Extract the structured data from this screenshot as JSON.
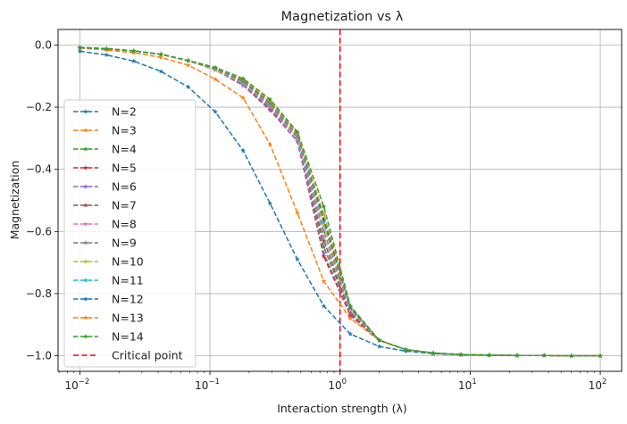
{
  "chart_data": {
    "type": "line",
    "title": "Magnetization vs λ",
    "xlabel": "Interaction strength (λ)",
    "ylabel": "Magnetization",
    "xscale": "log",
    "xlim": [
      0.0068,
      146
    ],
    "ylim": [
      -1.05,
      0.05
    ],
    "grid": true,
    "legend_position": "lower-left",
    "x_ticks": [
      {
        "base": "10",
        "exp": "−2",
        "value": 0.01
      },
      {
        "base": "10",
        "exp": "−1",
        "value": 0.1
      },
      {
        "base": "10",
        "exp": "0",
        "value": 1
      },
      {
        "base": "10",
        "exp": "1",
        "value": 10
      },
      {
        "base": "10",
        "exp": "2",
        "value": 100
      }
    ],
    "y_ticks": [
      {
        "label": "0.0",
        "value": 0.0
      },
      {
        "label": "−0.2",
        "value": -0.2
      },
      {
        "label": "−0.4",
        "value": -0.4
      },
      {
        "label": "−0.6",
        "value": -0.6
      },
      {
        "label": "−0.8",
        "value": -0.8
      },
      {
        "label": "−1.0",
        "value": -1.0
      }
    ],
    "x": [
      0.01,
      0.016,
      0.026,
      0.042,
      0.068,
      0.11,
      0.18,
      0.29,
      0.47,
      0.75,
      1.2,
      2.0,
      3.2,
      5.2,
      8.5,
      14,
      23,
      37,
      60,
      100
    ],
    "series": [
      {
        "name": "N=2",
        "color": "#1f77b4",
        "values": [
          -0.02,
          -0.032,
          -0.052,
          -0.085,
          -0.135,
          -0.215,
          -0.34,
          -0.51,
          -0.69,
          -0.84,
          -0.93,
          -0.97,
          -0.985,
          -0.993,
          -0.997,
          -0.998,
          -0.999,
          -0.999,
          -1.0,
          -1.0
        ]
      },
      {
        "name": "N=3",
        "color": "#ff7f0e",
        "values": [
          -0.01,
          -0.016,
          -0.025,
          -0.04,
          -0.065,
          -0.11,
          -0.17,
          -0.32,
          -0.54,
          -0.76,
          -0.88,
          -0.95,
          -0.98,
          -0.991,
          -0.996,
          -0.998,
          -0.999,
          -0.999,
          -1.0,
          -1.0
        ]
      },
      {
        "name": "N=4",
        "color": "#2ca02c",
        "values": [
          -0.008,
          -0.012,
          -0.019,
          -0.03,
          -0.05,
          -0.08,
          -0.13,
          -0.2,
          -0.3,
          -0.65,
          -0.86,
          -0.95,
          -0.98,
          -0.991,
          -0.996,
          -0.998,
          -0.999,
          -0.999,
          -1.0,
          -1.0
        ]
      },
      {
        "name": "N=5",
        "color": "#d62728",
        "values": [
          -0.008,
          -0.012,
          -0.019,
          -0.03,
          -0.05,
          -0.08,
          -0.13,
          -0.21,
          -0.31,
          -0.68,
          -0.87,
          -0.95,
          -0.98,
          -0.991,
          -0.996,
          -0.998,
          -0.999,
          -0.999,
          -1.0,
          -1.0
        ]
      },
      {
        "name": "N=6",
        "color": "#9467bd",
        "values": [
          -0.008,
          -0.012,
          -0.019,
          -0.03,
          -0.05,
          -0.08,
          -0.13,
          -0.21,
          -0.31,
          -0.67,
          -0.865,
          -0.95,
          -0.98,
          -0.991,
          -0.996,
          -0.998,
          -0.999,
          -0.999,
          -1.0,
          -1.0
        ]
      },
      {
        "name": "N=7",
        "color": "#8c564b",
        "values": [
          -0.008,
          -0.012,
          -0.019,
          -0.03,
          -0.05,
          -0.08,
          -0.125,
          -0.205,
          -0.3,
          -0.63,
          -0.86,
          -0.95,
          -0.98,
          -0.991,
          -0.996,
          -0.998,
          -0.999,
          -0.999,
          -1.0,
          -1.0
        ]
      },
      {
        "name": "N=8",
        "color": "#e377c2",
        "values": [
          -0.008,
          -0.012,
          -0.019,
          -0.03,
          -0.05,
          -0.08,
          -0.125,
          -0.2,
          -0.3,
          -0.62,
          -0.855,
          -0.95,
          -0.98,
          -0.991,
          -0.996,
          -0.998,
          -0.999,
          -0.999,
          -1.0,
          -1.0
        ]
      },
      {
        "name": "N=9",
        "color": "#7f7f7f",
        "values": [
          -0.008,
          -0.012,
          -0.019,
          -0.03,
          -0.05,
          -0.078,
          -0.122,
          -0.195,
          -0.295,
          -0.6,
          -0.85,
          -0.95,
          -0.98,
          -0.991,
          -0.996,
          -0.998,
          -0.999,
          -0.999,
          -1.0,
          -1.0
        ]
      },
      {
        "name": "N=10",
        "color": "#bcbd22",
        "values": [
          -0.008,
          -0.012,
          -0.019,
          -0.03,
          -0.05,
          -0.078,
          -0.12,
          -0.19,
          -0.29,
          -0.58,
          -0.85,
          -0.95,
          -0.98,
          -0.991,
          -0.996,
          -0.998,
          -0.999,
          -0.999,
          -1.0,
          -1.0
        ]
      },
      {
        "name": "N=11",
        "color": "#17becf",
        "values": [
          -0.008,
          -0.012,
          -0.019,
          -0.03,
          -0.05,
          -0.076,
          -0.118,
          -0.188,
          -0.29,
          -0.57,
          -0.845,
          -0.95,
          -0.98,
          -0.991,
          -0.996,
          -0.998,
          -0.999,
          -0.999,
          -1.0,
          -1.0
        ]
      },
      {
        "name": "N=12",
        "color": "#1f77b4",
        "values": [
          -0.008,
          -0.012,
          -0.019,
          -0.03,
          -0.05,
          -0.075,
          -0.115,
          -0.185,
          -0.285,
          -0.56,
          -0.845,
          -0.95,
          -0.98,
          -0.991,
          -0.996,
          -0.998,
          -0.999,
          -0.999,
          -1.0,
          -1.0
        ]
      },
      {
        "name": "N=13",
        "color": "#ff7f0e",
        "values": [
          -0.008,
          -0.012,
          -0.019,
          -0.03,
          -0.05,
          -0.074,
          -0.112,
          -0.182,
          -0.285,
          -0.545,
          -0.84,
          -0.95,
          -0.98,
          -0.991,
          -0.996,
          -0.998,
          -0.999,
          -0.999,
          -1.0,
          -1.0
        ]
      },
      {
        "name": "N=14",
        "color": "#2ca02c",
        "values": [
          -0.008,
          -0.012,
          -0.019,
          -0.03,
          -0.05,
          -0.072,
          -0.108,
          -0.175,
          -0.28,
          -0.52,
          -0.84,
          -0.95,
          -0.98,
          -0.991,
          -0.996,
          -0.998,
          -0.999,
          -0.999,
          -1.0,
          -1.0
        ]
      }
    ],
    "vlines": [
      {
        "name": "Critical point",
        "x": 1,
        "color": "#ff0000"
      }
    ]
  }
}
